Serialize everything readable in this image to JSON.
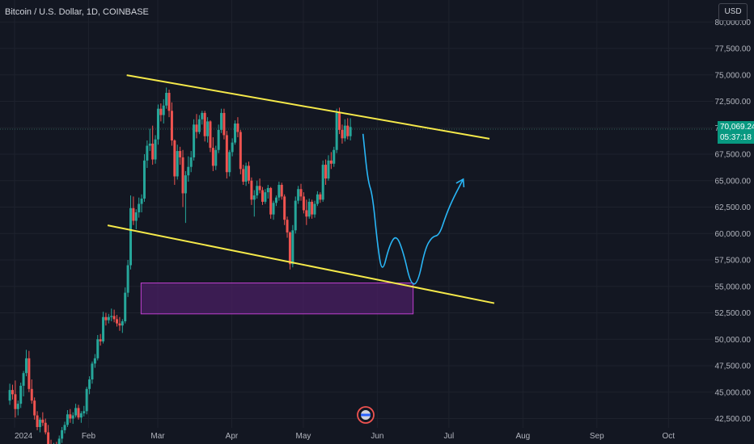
{
  "header": {
    "title": "Bitcoin / U.S. Dollar, 1D, COINBASE",
    "currency_button": "USD"
  },
  "price_tag": {
    "price": "70,069.24",
    "countdown": "05:37:18"
  },
  "colors": {
    "background": "#131722",
    "up_candle": "#26a69a",
    "down_candle": "#ef5350",
    "trendline": "#f5e94a",
    "zone_fill": "#4a1f63",
    "zone_border": "#c040d0",
    "projection": "#29b6f6",
    "price_tag": "#089981"
  },
  "chart_data": {
    "type": "candlestick",
    "symbol": "Bitcoin / U.S. Dollar",
    "interval": "1D",
    "exchange": "COINBASE",
    "x_ticks": [
      "2024",
      "Feb",
      "Mar",
      "Apr",
      "May",
      "Jun",
      "Jul",
      "Aug",
      "Sep",
      "Oct"
    ],
    "y_ticks": [
      "80,000.00",
      "77,500.00",
      "75,000.00",
      "72,500.00",
      "70,000.00",
      "67,500.00",
      "65,000.00",
      "62,500.00",
      "60,000.00",
      "57,500.00",
      "55,000.00",
      "52,500.00",
      "50,000.00",
      "47,500.00",
      "45,000.00",
      "42,500.00"
    ],
    "last_price": 70069.24,
    "ohlc_approx": [
      [
        44200,
        45800,
        43800,
        45200
      ],
      [
        45200,
        45700,
        44300,
        44800
      ],
      [
        44800,
        46100,
        42600,
        43400
      ],
      [
        43400,
        44200,
        42800,
        43900
      ],
      [
        43900,
        45900,
        43500,
        45600
      ],
      [
        45600,
        47000,
        44600,
        46800
      ],
      [
        46800,
        49000,
        46500,
        48200
      ],
      [
        48200,
        48900,
        45000,
        45300
      ],
      [
        45300,
        46200,
        43900,
        44200
      ],
      [
        44200,
        44500,
        42400,
        42800
      ],
      [
        42800,
        43200,
        41400,
        41700
      ],
      [
        41700,
        42600,
        41200,
        42400
      ],
      [
        42400,
        43100,
        41800,
        42100
      ],
      [
        42100,
        42500,
        41000,
        41200
      ],
      [
        41200,
        41900,
        39700,
        40000
      ],
      [
        40000,
        40500,
        38600,
        39100
      ],
      [
        39100,
        40200,
        39000,
        40000
      ],
      [
        40000,
        40300,
        38900,
        39600
      ],
      [
        39600,
        40900,
        39400,
        40600
      ],
      [
        40600,
        41700,
        40200,
        41400
      ],
      [
        41400,
        42200,
        41100,
        41900
      ],
      [
        41900,
        43300,
        41700,
        42900
      ],
      [
        42900,
        43400,
        42100,
        42500
      ],
      [
        42500,
        43100,
        42000,
        42800
      ],
      [
        42800,
        43900,
        42600,
        43500
      ],
      [
        43500,
        43800,
        42400,
        42600
      ],
      [
        42600,
        43200,
        42100,
        43000
      ],
      [
        43000,
        43700,
        42700,
        43200
      ],
      [
        43200,
        45500,
        42900,
        45300
      ],
      [
        45300,
        46500,
        44800,
        46200
      ],
      [
        46200,
        47900,
        45800,
        47700
      ],
      [
        47700,
        48600,
        47300,
        48200
      ],
      [
        48200,
        50400,
        48000,
        50000
      ],
      [
        50000,
        50500,
        49400,
        49800
      ],
      [
        49800,
        52600,
        49600,
        52100
      ],
      [
        52100,
        52500,
        51300,
        51800
      ],
      [
        51800,
        52400,
        51500,
        52100
      ],
      [
        52100,
        52900,
        51700,
        52200
      ],
      [
        52200,
        52800,
        51600,
        51900
      ],
      [
        51900,
        52300,
        51200,
        51500
      ],
      [
        51500,
        52100,
        50800,
        51300
      ],
      [
        51300,
        51900,
        50600,
        51700
      ],
      [
        51700,
        54900,
        51500,
        54400
      ],
      [
        54400,
        57500,
        54000,
        57000
      ],
      [
        57000,
        63600,
        56600,
        62400
      ],
      [
        62400,
        63500,
        60800,
        61200
      ],
      [
        61200,
        62300,
        60400,
        62000
      ],
      [
        62000,
        63400,
        61500,
        62800
      ],
      [
        62800,
        63700,
        62000,
        63300
      ],
      [
        63300,
        67500,
        63000,
        66900
      ],
      [
        66900,
        68800,
        66200,
        68300
      ],
      [
        68300,
        69900,
        67800,
        68500
      ],
      [
        68500,
        70200,
        66500,
        67000
      ],
      [
        67000,
        69300,
        66600,
        68900
      ],
      [
        68900,
        72200,
        68400,
        71800
      ],
      [
        71800,
        72300,
        70600,
        71200
      ],
      [
        71200,
        72700,
        70400,
        72100
      ],
      [
        72100,
        73800,
        71800,
        73300
      ],
      [
        73300,
        73600,
        71000,
        71600
      ],
      [
        71600,
        72400,
        68300,
        68800
      ],
      [
        68800,
        68900,
        64600,
        65400
      ],
      [
        65400,
        68400,
        65100,
        67800
      ],
      [
        67800,
        68200,
        66500,
        67200
      ],
      [
        67200,
        67900,
        62500,
        63800
      ],
      [
        63800,
        65900,
        61000,
        65500
      ],
      [
        65500,
        67300,
        64900,
        66300
      ],
      [
        66300,
        67800,
        65800,
        67200
      ],
      [
        67200,
        70800,
        66900,
        70300
      ],
      [
        70300,
        71300,
        69000,
        69600
      ],
      [
        69600,
        71200,
        69400,
        70800
      ],
      [
        70800,
        71600,
        70300,
        71400
      ],
      [
        71400,
        71600,
        68700,
        69200
      ],
      [
        69200,
        71000,
        68600,
        70600
      ],
      [
        70600,
        70700,
        67700,
        68100
      ],
      [
        68100,
        69100,
        65900,
        66400
      ],
      [
        66400,
        68300,
        66000,
        67900
      ],
      [
        67900,
        70300,
        67600,
        69800
      ],
      [
        69800,
        71800,
        69500,
        71400
      ],
      [
        71400,
        71800,
        68900,
        69300
      ],
      [
        69300,
        69700,
        65200,
        65800
      ],
      [
        65800,
        67900,
        65400,
        67700
      ],
      [
        67700,
        69000,
        67300,
        68600
      ],
      [
        68600,
        70700,
        68400,
        70400
      ],
      [
        70400,
        71000,
        69100,
        69600
      ],
      [
        69600,
        69800,
        65600,
        66100
      ],
      [
        66100,
        66500,
        64600,
        64900
      ],
      [
        64900,
        66700,
        64500,
        66400
      ],
      [
        66400,
        66800,
        64700,
        65000
      ],
      [
        65000,
        65300,
        62700,
        63200
      ],
      [
        63200,
        64100,
        61600,
        63600
      ],
      [
        63600,
        65000,
        63300,
        64500
      ],
      [
        64500,
        65200,
        63800,
        64100
      ],
      [
        64100,
        64400,
        62700,
        63000
      ],
      [
        63000,
        64200,
        62800,
        63900
      ],
      [
        63900,
        64600,
        63300,
        64300
      ],
      [
        64300,
        64400,
        61400,
        61800
      ],
      [
        61800,
        63100,
        61300,
        62900
      ],
      [
        62900,
        63600,
        62600,
        63400
      ],
      [
        63400,
        64900,
        63100,
        64600
      ],
      [
        64600,
        64800,
        63200,
        63500
      ],
      [
        63500,
        63700,
        60800,
        61300
      ],
      [
        61300,
        61600,
        59600,
        60100
      ],
      [
        60100,
        60200,
        56600,
        57100
      ],
      [
        57100,
        60800,
        56800,
        60300
      ],
      [
        60300,
        63500,
        60000,
        63100
      ],
      [
        63100,
        64500,
        62800,
        64200
      ],
      [
        64200,
        64700,
        63100,
        63500
      ],
      [
        63500,
        63900,
        61900,
        62200
      ],
      [
        62200,
        63200,
        60800,
        61600
      ],
      [
        61600,
        63300,
        61400,
        63000
      ],
      [
        63000,
        63200,
        61400,
        61800
      ],
      [
        61800,
        63100,
        61500,
        62800
      ],
      [
        62800,
        64000,
        62600,
        63700
      ],
      [
        63700,
        63900,
        62900,
        63200
      ],
      [
        63200,
        66900,
        63000,
        66500
      ],
      [
        66500,
        67000,
        64600,
        65200
      ],
      [
        65200,
        67400,
        65000,
        66900
      ],
      [
        66900,
        67700,
        66100,
        66600
      ],
      [
        66600,
        68200,
        66300,
        67900
      ],
      [
        67900,
        71800,
        67600,
        71400
      ],
      [
        71400,
        71900,
        69400,
        69800
      ],
      [
        69800,
        70300,
        68500,
        69000
      ],
      [
        69000,
        70800,
        68700,
        70200
      ],
      [
        70200,
        70900,
        68900,
        69200
      ],
      [
        69200,
        70900,
        68800,
        70069
      ]
    ],
    "annotations": {
      "upper_trendline": [
        [
          "2024-02-17",
          74970
        ],
        [
          "2024-07-18",
          68960
        ]
      ],
      "lower_trendline": [
        [
          "2024-02-09",
          60770
        ],
        [
          "2024-07-20",
          53410
        ]
      ],
      "demand_zone": {
        "from": "2024-02-23",
        "to": "2024-06-16",
        "low": 52400,
        "high": 55320
      },
      "projection_path": [
        [
          "2024-05-26",
          69420
        ],
        [
          "2024-05-28",
          65000
        ],
        [
          "2024-05-30",
          63650
        ],
        [
          "2024-06-01",
          59060
        ],
        [
          "2024-06-03",
          56100
        ],
        [
          "2024-06-06",
          58870
        ],
        [
          "2024-06-09",
          59920
        ],
        [
          "2024-06-12",
          58150
        ],
        [
          "2024-06-15",
          55170
        ],
        [
          "2024-06-18",
          55280
        ],
        [
          "2024-06-21",
          58570
        ],
        [
          "2024-06-24",
          59720
        ],
        [
          "2024-06-27",
          59830
        ],
        [
          "2024-06-30",
          61880
        ],
        [
          "2024-07-03",
          63420
        ],
        [
          "2024-07-07",
          65140
        ]
      ]
    }
  }
}
